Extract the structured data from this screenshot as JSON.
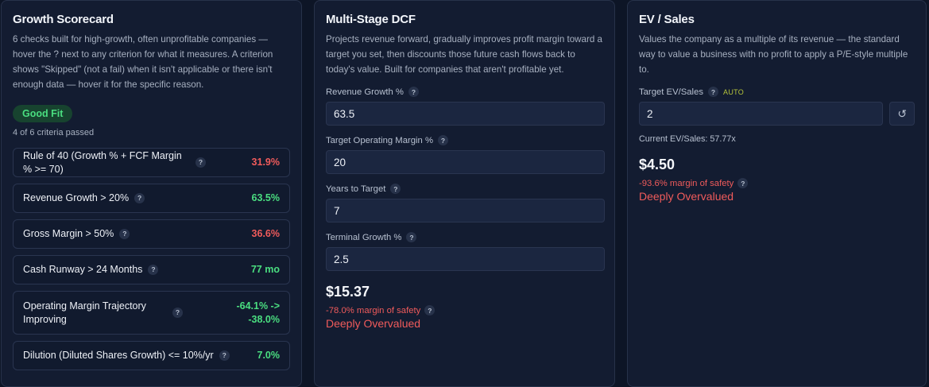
{
  "scorecard": {
    "title": "Growth Scorecard",
    "description": "6 checks built for high-growth, often unprofitable companies — hover the ? next to any criterion for what it measures. A criterion shows \"Skipped\" (not a fail) when it isn't applicable or there isn't enough data — hover it for the specific reason.",
    "badge": "Good Fit",
    "passed_text": "4 of 6 criteria passed",
    "criteria": [
      {
        "label": "Rule of 40 (Growth % + FCF Margin % >= 70)",
        "value": "31.9%",
        "status": "fail"
      },
      {
        "label": "Revenue Growth > 20%",
        "value": "63.5%",
        "status": "pass"
      },
      {
        "label": "Gross Margin > 50%",
        "value": "36.6%",
        "status": "fail"
      },
      {
        "label": "Cash Runway > 24 Months",
        "value": "77 mo",
        "status": "pass"
      },
      {
        "label": "Operating Margin Trajectory Improving",
        "value_line1": "-64.1% ->",
        "value_line2": "-38.0%",
        "status": "pass"
      },
      {
        "label": "Dilution (Diluted Shares Growth) <= 10%/yr",
        "value": "7.0%",
        "status": "pass"
      }
    ],
    "help_glyph": "?"
  },
  "dcf": {
    "title": "Multi-Stage DCF",
    "description": "Projects revenue forward, gradually improves profit margin toward a target you set, then discounts those future cash flows back to today's value. Built for companies that aren't profitable yet.",
    "fields": [
      {
        "label": "Revenue Growth %",
        "value": "63.5"
      },
      {
        "label": "Target Operating Margin %",
        "value": "20"
      },
      {
        "label": "Years to Target",
        "value": "7"
      },
      {
        "label": "Terminal Growth %",
        "value": "2.5"
      }
    ],
    "fair_value": "$15.37",
    "margin_of_safety": "-78.0% margin of safety",
    "verdict": "Deeply Overvalued"
  },
  "ev_sales": {
    "title": "EV / Sales",
    "description": "Values the company as a multiple of its revenue — the standard way to value a business with no profit to apply a P/E-style multiple to.",
    "target_label": "Target EV/Sales",
    "auto_tag": "AUTO",
    "target_value": "2",
    "reset_icon": "↺",
    "current": "Current EV/Sales: 57.77x",
    "fair_value": "$4.50",
    "margin_of_safety": "-93.6% margin of safety",
    "verdict": "Deeply Overvalued"
  },
  "colors": {
    "pass": "#4ade80",
    "fail": "#f05b5b",
    "auto": "#b5c43a"
  }
}
